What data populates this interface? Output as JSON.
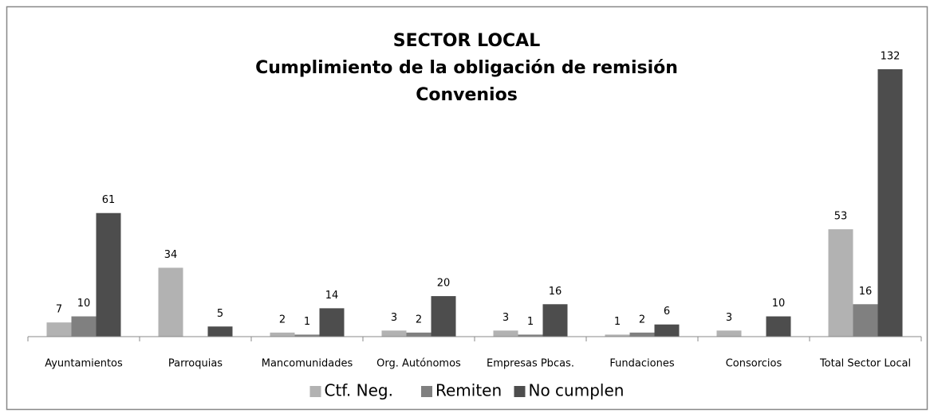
{
  "chart_data": {
    "type": "bar",
    "title": [
      "SECTOR LOCAL",
      "Cumplimiento de la obligación de remisión",
      "Convenios"
    ],
    "categories": [
      "Ayuntamientos",
      "Parroquias",
      "Mancomunidades",
      "Org. Autónomos",
      "Empresas Pbcas.",
      "Fundaciones",
      "Consorcios",
      "Total Sector Local"
    ],
    "series": [
      {
        "name": "Ctf. Neg.",
        "color": "#b2b2b2",
        "values": [
          7,
          34,
          2,
          3,
          3,
          1,
          3,
          53
        ]
      },
      {
        "name": "Remiten",
        "color": "#808080",
        "values": [
          10,
          null,
          1,
          2,
          1,
          2,
          null,
          16
        ]
      },
      {
        "name": "No cumplen",
        "color": "#4d4d4d",
        "values": [
          61,
          5,
          14,
          20,
          16,
          6,
          10,
          132
        ]
      }
    ],
    "ylim": [
      0,
      132
    ],
    "legend": "bottom"
  }
}
